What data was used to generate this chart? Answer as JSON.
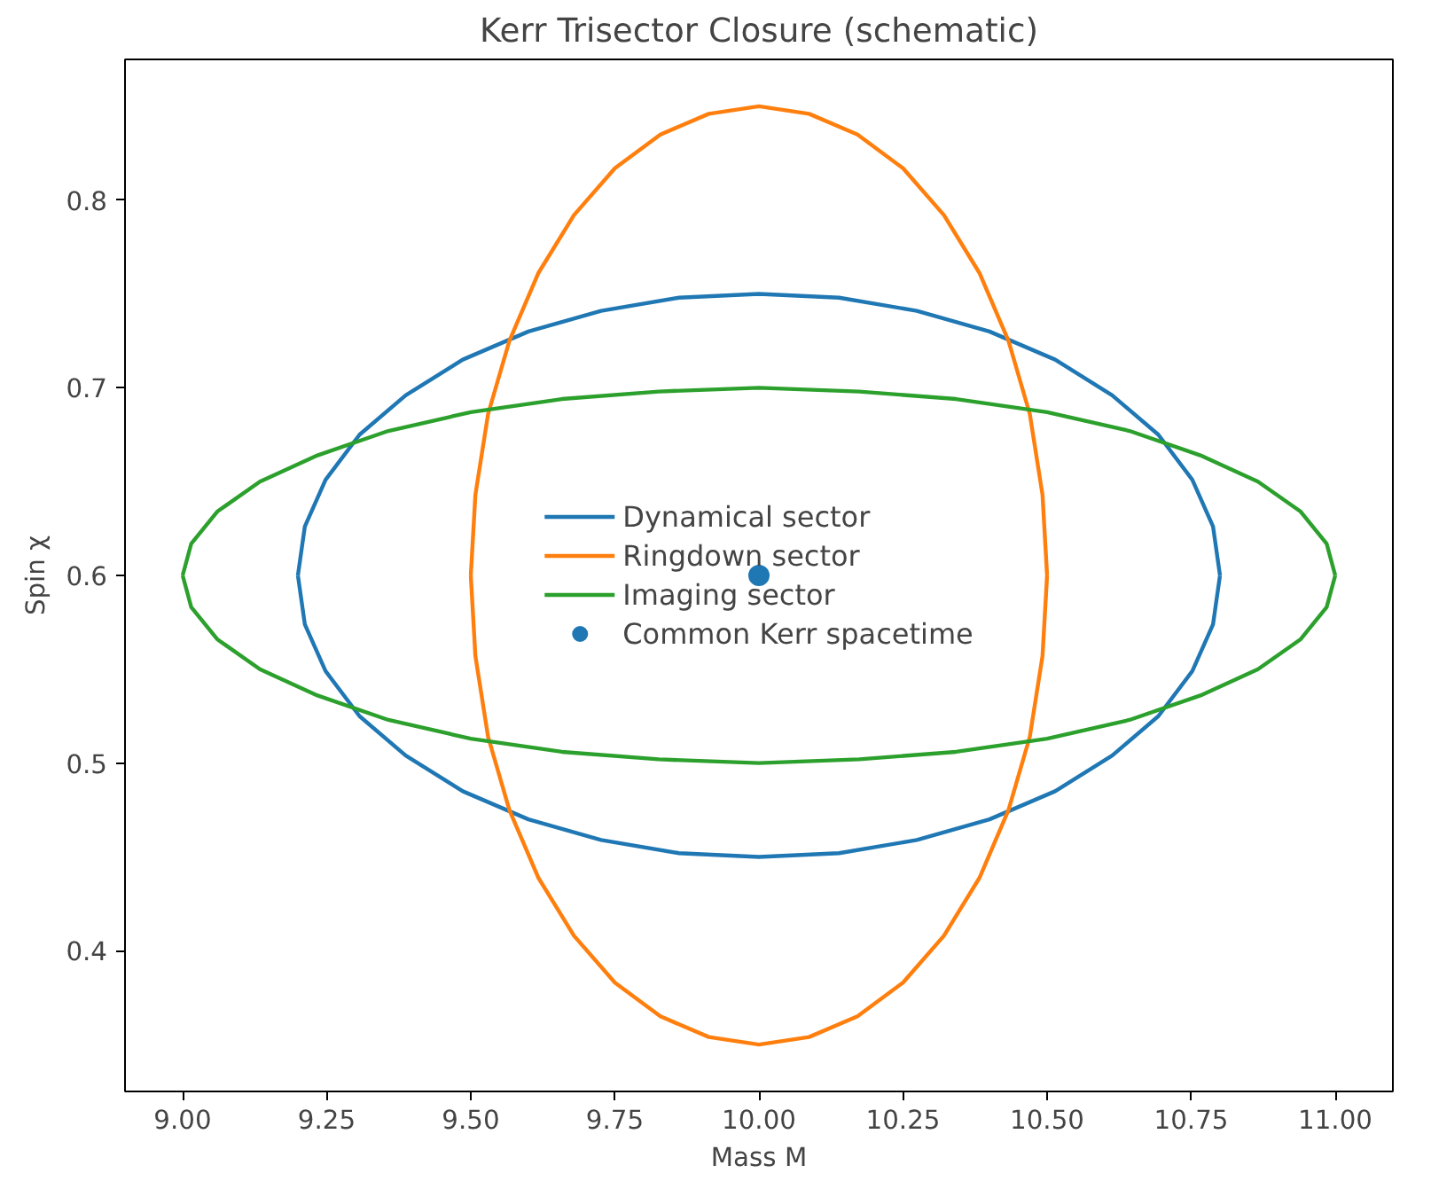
{
  "chart_data": {
    "type": "line",
    "title": "Kerr Trisector Closure (schematic)",
    "xlabel": "Mass M",
    "ylabel": "Spin χ",
    "xlim": [
      8.9,
      11.1
    ],
    "ylim": [
      0.325,
      0.875
    ],
    "xticks": [
      {
        "value": 9,
        "label": "9.00"
      },
      {
        "value": 9.25,
        "label": "9.25"
      },
      {
        "value": 9.5,
        "label": "9.50"
      },
      {
        "value": 9.75,
        "label": "9.75"
      },
      {
        "value": 10,
        "label": "10.00"
      },
      {
        "value": 10.25,
        "label": "10.25"
      },
      {
        "value": 10.5,
        "label": "10.50"
      },
      {
        "value": 10.75,
        "label": "10.75"
      },
      {
        "value": 11,
        "label": "11.00"
      }
    ],
    "yticks": [
      0.4,
      0.5,
      0.6,
      0.7,
      0.8
    ],
    "grid": false,
    "legend": "center",
    "marker": "none",
    "line_style": "solid",
    "series": [
      {
        "name": "Dynamical sector",
        "color": "#1f77b4",
        "x": [
          9.2,
          9.212,
          9.248,
          9.307,
          9.387,
          9.486,
          9.6,
          9.726,
          9.861,
          10,
          10.139,
          10.274,
          10.4,
          10.514,
          10.613,
          10.693,
          10.752,
          10.788,
          10.8,
          null,
          9.2,
          9.212,
          9.248,
          9.307,
          9.387,
          9.486,
          9.6,
          9.726,
          9.861,
          10,
          10.139,
          10.274,
          10.4,
          10.514,
          10.613,
          10.693,
          10.752,
          10.788,
          10.8
        ],
        "values": [
          0.6,
          0.626,
          0.651,
          0.675,
          0.696,
          0.715,
          0.73,
          0.741,
          0.748,
          0.75,
          0.748,
          0.741,
          0.73,
          0.715,
          0.696,
          0.675,
          0.651,
          0.626,
          0.6,
          null,
          0.6,
          0.574,
          0.549,
          0.525,
          0.504,
          0.485,
          0.47,
          0.459,
          0.452,
          0.45,
          0.452,
          0.459,
          0.47,
          0.485,
          0.504,
          0.525,
          0.549,
          0.574,
          0.6
        ]
      },
      {
        "name": "Ringdown sector",
        "color": "#ff7f0e",
        "x": [
          9.5,
          9.508,
          9.53,
          9.567,
          9.617,
          9.679,
          9.75,
          9.829,
          9.913,
          10,
          10.087,
          10.171,
          10.25,
          10.321,
          10.383,
          10.433,
          10.47,
          10.492,
          10.5,
          null,
          9.5,
          9.508,
          9.53,
          9.567,
          9.617,
          9.679,
          9.75,
          9.829,
          9.913,
          10,
          10.087,
          10.171,
          10.25,
          10.321,
          10.383,
          10.433,
          10.47,
          10.492,
          10.5
        ],
        "values": [
          0.6,
          0.643,
          0.686,
          0.725,
          0.761,
          0.792,
          0.817,
          0.835,
          0.846,
          0.85,
          0.846,
          0.835,
          0.817,
          0.792,
          0.761,
          0.725,
          0.686,
          0.643,
          0.6,
          null,
          0.6,
          0.557,
          0.514,
          0.475,
          0.439,
          0.408,
          0.383,
          0.365,
          0.354,
          0.35,
          0.354,
          0.365,
          0.383,
          0.408,
          0.439,
          0.475,
          0.514,
          0.557,
          0.6
        ]
      },
      {
        "name": "Imaging sector",
        "color": "#2ca02c",
        "x": [
          9,
          9.015,
          9.06,
          9.134,
          9.234,
          9.357,
          9.5,
          9.658,
          9.826,
          10,
          10.174,
          10.342,
          10.5,
          10.643,
          10.766,
          10.866,
          10.94,
          10.985,
          11,
          null,
          9,
          9.015,
          9.06,
          9.134,
          9.234,
          9.357,
          9.5,
          9.658,
          9.826,
          10,
          10.174,
          10.342,
          10.5,
          10.643,
          10.766,
          10.866,
          10.94,
          10.985,
          11
        ],
        "values": [
          0.6,
          0.617,
          0.634,
          0.65,
          0.664,
          0.677,
          0.687,
          0.694,
          0.698,
          0.7,
          0.698,
          0.694,
          0.687,
          0.677,
          0.664,
          0.65,
          0.634,
          0.617,
          0.6,
          null,
          0.6,
          0.583,
          0.566,
          0.55,
          0.536,
          0.523,
          0.513,
          0.506,
          0.502,
          0.5,
          0.502,
          0.506,
          0.513,
          0.523,
          0.536,
          0.55,
          0.566,
          0.583,
          0.6
        ]
      },
      {
        "name": "Common Kerr spacetime",
        "color": "#1f77b4",
        "type": "scatter",
        "marker": "circle",
        "x": [
          10
        ],
        "values": [
          0.6
        ]
      }
    ]
  }
}
